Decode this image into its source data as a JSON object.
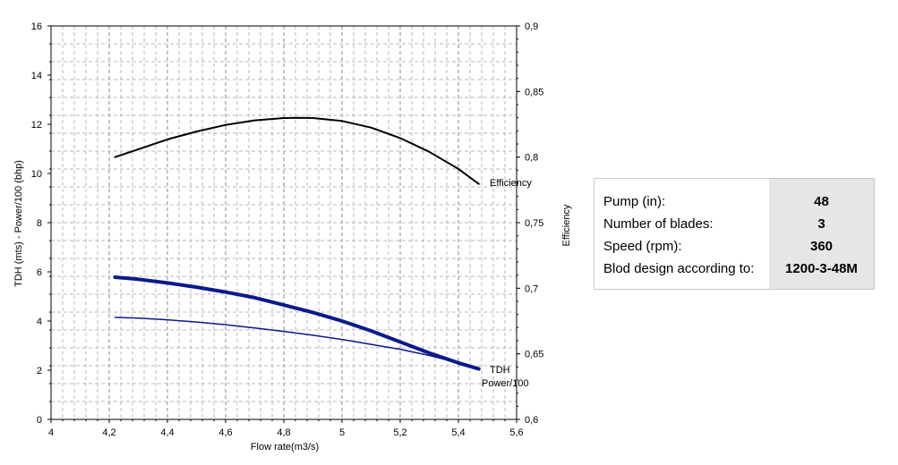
{
  "chart_data": {
    "type": "line",
    "xlabel": "Flow rate(m3/s)",
    "ylabel": "TDH (mts) - Power/100 (bhp)",
    "y2label": "Efficiency",
    "xlim": [
      4,
      5.6
    ],
    "ylim": [
      0,
      16
    ],
    "y2lim": [
      0.6,
      0.9
    ],
    "x_ticks": [
      "4",
      "4,2",
      "4,4",
      "4,6",
      "4,8",
      "5",
      "5,2",
      "5,4",
      "5,6"
    ],
    "y_ticks": [
      "0",
      "2",
      "4",
      "6",
      "8",
      "10",
      "12",
      "14",
      "16"
    ],
    "y2_ticks": [
      "0,6",
      "0,65",
      "0,7",
      "0,75",
      "0,8",
      "0,85",
      "0,9"
    ],
    "grid": true,
    "series": [
      {
        "name": "Efficiency",
        "axis": "right",
        "color": "#000000",
        "x": [
          4.22,
          4.3,
          4.4,
          4.5,
          4.6,
          4.7,
          4.8,
          4.85,
          4.9,
          5.0,
          5.1,
          5.2,
          5.3,
          5.4,
          5.47
        ],
        "values": [
          0.8,
          0.806,
          0.8135,
          0.8195,
          0.8245,
          0.828,
          0.8298,
          0.83,
          0.8298,
          0.8275,
          0.8225,
          0.8145,
          0.804,
          0.791,
          0.7795
        ]
      },
      {
        "name": "TDH",
        "axis": "left",
        "color": "#0a1a8a",
        "x": [
          4.22,
          4.3,
          4.4,
          4.5,
          4.6,
          4.7,
          4.8,
          4.9,
          5.0,
          5.1,
          5.2,
          5.3,
          5.4,
          5.47
        ],
        "values": [
          5.78,
          5.7,
          5.55,
          5.38,
          5.18,
          4.95,
          4.65,
          4.35,
          4.0,
          3.6,
          3.15,
          2.7,
          2.3,
          2.05
        ]
      },
      {
        "name": "Power/100",
        "axis": "left",
        "color": "#0a1a8a",
        "x": [
          4.22,
          4.3,
          4.4,
          4.5,
          4.6,
          4.7,
          4.8,
          4.9,
          5.0,
          5.1,
          5.2,
          5.3,
          5.4,
          5.47
        ],
        "values": [
          4.15,
          4.12,
          4.05,
          3.96,
          3.85,
          3.72,
          3.58,
          3.42,
          3.25,
          3.05,
          2.85,
          2.6,
          2.3,
          2.05
        ]
      }
    ]
  },
  "info": {
    "rows": [
      {
        "label": "Pump (in):",
        "value": "48"
      },
      {
        "label": "Number of blades:",
        "value": "3"
      },
      {
        "label": "Speed (rpm):",
        "value": "360"
      },
      {
        "label": "Blod design according to:",
        "value": "1200-3-48M"
      }
    ]
  }
}
